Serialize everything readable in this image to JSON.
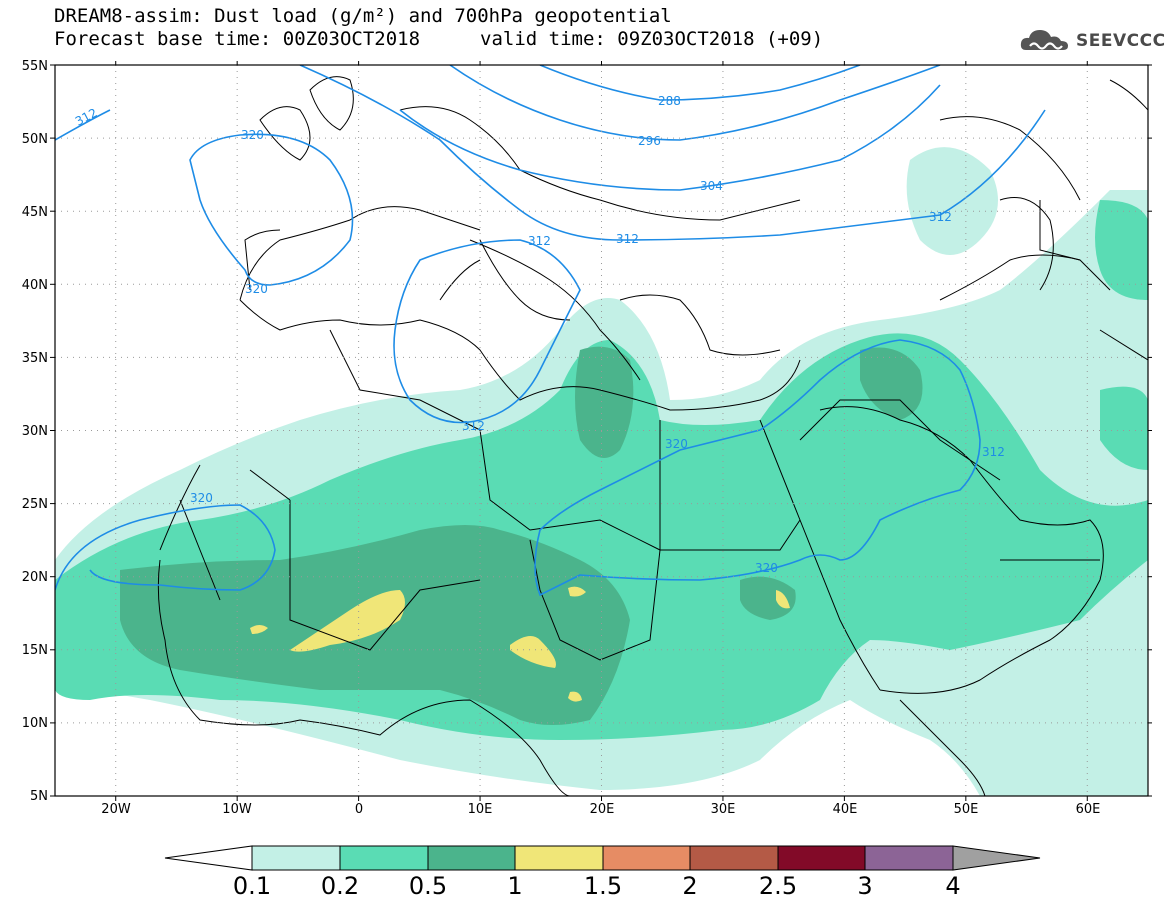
{
  "header": {
    "title_line1": "DREAM8-assim: Dust load (g/m²) and 700hPa geopotential",
    "title_line2": "Forecast base time: 00Z03OCT2018",
    "valid_time": "valid time: 09Z03OCT2018 (+09)",
    "logo_text": "SEEVCCC"
  },
  "map": {
    "lat_labels": [
      "55N",
      "50N",
      "45N",
      "40N",
      "35N",
      "30N",
      "25N",
      "20N",
      "15N",
      "10N",
      "5N"
    ],
    "lon_labels": [
      "20W",
      "10W",
      "0",
      "10E",
      "20E",
      "30E",
      "40E",
      "50E",
      "60E"
    ],
    "contour_labels": [
      "312",
      "320",
      "288",
      "296",
      "304",
      "312",
      "312",
      "320",
      "312",
      "312",
      "320",
      "320",
      "320",
      "312"
    ],
    "extent": {
      "lon": [
        -25,
        65
      ],
      "lat": [
        5,
        55
      ]
    }
  },
  "colorbar": {
    "ticks": [
      "0.1",
      "0.2",
      "0.5",
      "1",
      "1.5",
      "2",
      "2.5",
      "3",
      "4"
    ],
    "colors": [
      "#c3f0e6",
      "#5adcb4",
      "#4bb48c",
      "#f0e678",
      "#e68c64",
      "#b45a46",
      "#820a28",
      "#8c6496"
    ],
    "under_color": "#ffffff",
    "over_color": "#a0a0a0"
  },
  "colors": {
    "contour": "#1e8ce6",
    "coast": "#000000"
  }
}
